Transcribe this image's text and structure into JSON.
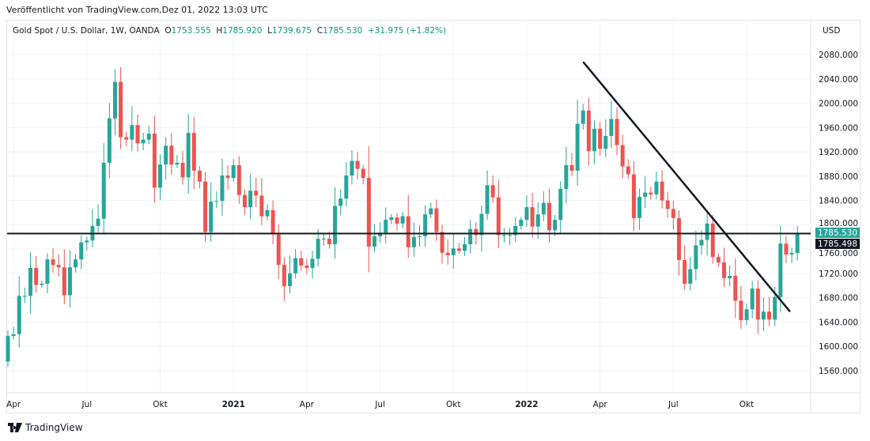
{
  "published": "Veröffentlicht von TradingView.com,Dez 01, 2022 13:03 UTC",
  "legend": {
    "symbol": "Gold Spot / U.S. Dollar, 1W, OANDA",
    "o_label": "O",
    "o": "1753.555",
    "h_label": "H",
    "h": "1785.920",
    "l_label": "L",
    "l": "1739.675",
    "c_label": "C",
    "c": "1785.530",
    "change": "+31.975 (+1.82%)"
  },
  "currency": "USD",
  "brand": "TradingView",
  "colors": {
    "up": "#26a69a",
    "down": "#ef5350",
    "line": "#131722",
    "grid": "#f0f3fa"
  },
  "chart_data": {
    "type": "candlestick",
    "title": "Gold Spot / U.S. Dollar, 1W, OANDA",
    "ylim": [
      1530,
      2100
    ],
    "y_ticks": [
      "1560.000",
      "1600.000",
      "1640.000",
      "1680.000",
      "1720.000",
      "1760.000",
      "1800.000",
      "1840.000",
      "1880.000",
      "1920.000",
      "1960.000",
      "2000.000",
      "2040.000",
      "2080.000"
    ],
    "y_tick_values": [
      1560,
      1600,
      1640,
      1680,
      1720,
      1760,
      1800,
      1840,
      1880,
      1920,
      1960,
      2000,
      2040,
      2080
    ],
    "x_ticks": [
      {
        "label": "Apr",
        "week": 1
      },
      {
        "label": "Jul",
        "week": 14
      },
      {
        "label": "Okt",
        "week": 27
      },
      {
        "label": "2021",
        "week": 40
      },
      {
        "label": "Apr",
        "week": 53
      },
      {
        "label": "Jul",
        "week": 66
      },
      {
        "label": "Okt",
        "week": 79
      },
      {
        "label": "2022",
        "week": 92
      },
      {
        "label": "Apr",
        "week": 105
      },
      {
        "label": "Jul",
        "week": 118
      },
      {
        "label": "Okt",
        "week": 131
      }
    ],
    "first_open": 1575,
    "closes": [
      1617,
      1620,
      1683,
      1683,
      1729,
      1701,
      1703,
      1743,
      1734,
      1730,
      1684,
      1730,
      1743,
      1771,
      1774,
      1798,
      1810,
      1902,
      1975,
      2035,
      1944,
      1940,
      1964,
      1934,
      1940,
      1950,
      1861,
      1899,
      1930,
      1899,
      1902,
      1878,
      1951,
      1889,
      1871,
      1788,
      1838,
      1839,
      1881,
      1877,
      1898,
      1849,
      1829,
      1856,
      1848,
      1814,
      1824,
      1784,
      1734,
      1699,
      1720,
      1745,
      1733,
      1729,
      1744,
      1777,
      1777,
      1768,
      1831,
      1843,
      1881,
      1905,
      1892,
      1877,
      1764,
      1781,
      1787,
      1808,
      1812,
      1802,
      1814,
      1763,
      1780,
      1781,
      1817,
      1827,
      1788,
      1754,
      1750,
      1761,
      1757,
      1768,
      1793,
      1783,
      1818,
      1865,
      1845,
      1783,
      1783,
      1783,
      1798,
      1808,
      1829,
      1797,
      1817,
      1836,
      1791,
      1808,
      1859,
      1898,
      1889,
      1966,
      1988,
      1921,
      1958,
      1925,
      1946,
      1974,
      1931,
      1896,
      1883,
      1811,
      1846,
      1853,
      1850,
      1871,
      1840,
      1826,
      1811,
      1742,
      1703,
      1727,
      1766,
      1775,
      1802,
      1747,
      1738,
      1712,
      1716,
      1675,
      1643,
      1661,
      1695,
      1644,
      1657,
      1644,
      1681,
      1769,
      1751,
      1753.555,
      1785.53
    ],
    "horizontal_line": {
      "price": 1785.498,
      "label": "1785.498"
    },
    "last_price_label": "1785.530",
    "trend_line": {
      "from": {
        "week": 102,
        "price": 2068
      },
      "to": {
        "week": 138.7,
        "price": 1657
      }
    }
  }
}
